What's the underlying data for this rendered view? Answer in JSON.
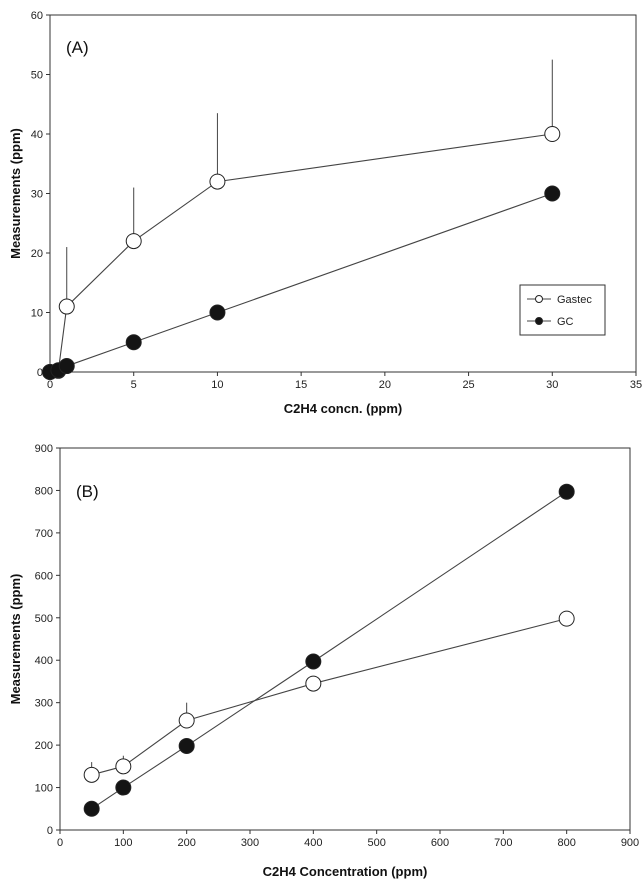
{
  "chart_data": [
    {
      "type": "line",
      "panel_label": "(A)",
      "xlabel": "C2H4 concn. (ppm)",
      "ylabel": "Measurements (ppm)",
      "xlim": [
        0,
        35
      ],
      "ylim": [
        0,
        60
      ],
      "xticks": [
        0,
        5,
        10,
        15,
        20,
        25,
        30,
        35
      ],
      "yticks": [
        0,
        10,
        20,
        30,
        40,
        50,
        60
      ],
      "grid": false,
      "legend_position": "right-middle",
      "series": [
        {
          "name": "Gastec",
          "marker": "open-circle",
          "x": [
            0,
            0.5,
            1,
            5,
            10,
            30
          ],
          "y": [
            0,
            0.2,
            11,
            22,
            32,
            40
          ],
          "error_upper": [
            0,
            0,
            21,
            31,
            43.5,
            52.5
          ]
        },
        {
          "name": "GC",
          "marker": "filled-circle",
          "x": [
            0,
            0.5,
            1,
            5,
            10,
            30
          ],
          "y": [
            0,
            0.3,
            1,
            5,
            10,
            30
          ],
          "error_upper": []
        }
      ]
    },
    {
      "type": "line",
      "panel_label": "(B)",
      "xlabel": "C2H4 Concentration (ppm)",
      "ylabel": "Measurements (ppm)",
      "xlim": [
        0,
        900
      ],
      "ylim": [
        0,
        900
      ],
      "xticks": [
        0,
        100,
        200,
        300,
        400,
        500,
        600,
        700,
        800,
        900
      ],
      "yticks": [
        0,
        100,
        200,
        300,
        400,
        500,
        600,
        700,
        800,
        900
      ],
      "grid": false,
      "series": [
        {
          "name": "Gastec",
          "marker": "open-circle",
          "x": [
            50,
            100,
            200,
            400,
            800
          ],
          "y": [
            130,
            150,
            258,
            345,
            498
          ],
          "error_upper": [
            160,
            175,
            300,
            0,
            0
          ]
        },
        {
          "name": "GC",
          "marker": "filled-circle",
          "x": [
            50,
            100,
            200,
            400,
            800
          ],
          "y": [
            50,
            100,
            198,
            397,
            797
          ],
          "error_upper": []
        }
      ]
    }
  ]
}
